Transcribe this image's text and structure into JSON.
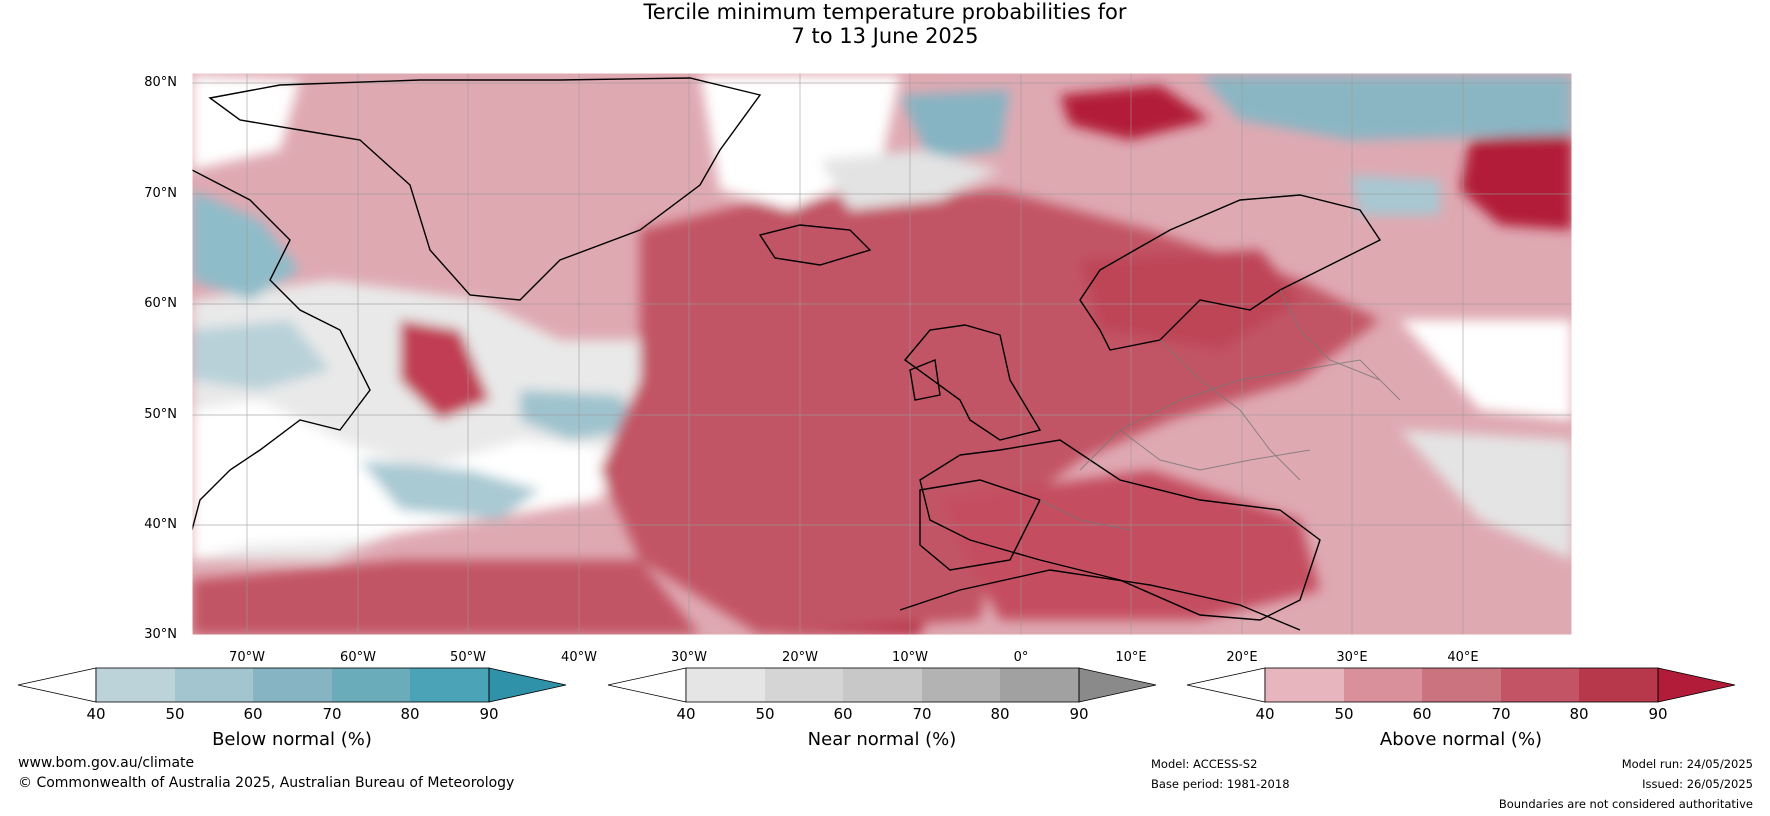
{
  "title": {
    "line1": "Tercile minimum temperature probabilities for",
    "line2": "7 to 13 June 2025"
  },
  "map": {
    "lat_labels": [
      "80°N",
      "70°N",
      "60°N",
      "50°N",
      "40°N",
      "30°N"
    ],
    "lon_labels": [
      "70°W",
      "60°W",
      "50°W",
      "40°W",
      "30°W",
      "20°W",
      "10°W",
      "0°",
      "10°E",
      "20°E",
      "30°E",
      "40°E"
    ],
    "colors": {
      "below": [
        "#ffffff",
        "#bdd3da",
        "#a3c5cf",
        "#86b4c3",
        "#6bacbb",
        "#4aa3b6",
        "#2f92a8"
      ],
      "near": [
        "#ffffff",
        "#e5e5e5",
        "#d5d5d5",
        "#c8c8c8",
        "#b3b3b3",
        "#a1a1a1",
        "#8a8a8a"
      ],
      "above": [
        "#ffffff",
        "#e6b5bd",
        "#d9909b",
        "#cc7380",
        "#c25465",
        "#b8384b",
        "#b21c39"
      ]
    }
  },
  "colorbars": [
    {
      "name": "below",
      "label": "Below normal (%)",
      "ticks": [
        "40",
        "50",
        "60",
        "70",
        "80",
        "90"
      ]
    },
    {
      "name": "near",
      "label": "Near normal (%)",
      "ticks": [
        "40",
        "50",
        "60",
        "70",
        "80",
        "90"
      ]
    },
    {
      "name": "above",
      "label": "Above normal (%)",
      "ticks": [
        "40",
        "50",
        "60",
        "70",
        "80",
        "90"
      ]
    }
  ],
  "footer": {
    "website": "www.bom.gov.au/climate",
    "copyright": "© Commonwealth of Australia 2025, Australian Bureau of Meteorology",
    "model": "Model: ACCESS-S2",
    "base_period": "Base period: 1981-2018",
    "model_run": "Model run: 24/05/2025",
    "issued": "Issued: 26/05/2025",
    "disclaimer": "Boundaries are not considered authoritative"
  }
}
